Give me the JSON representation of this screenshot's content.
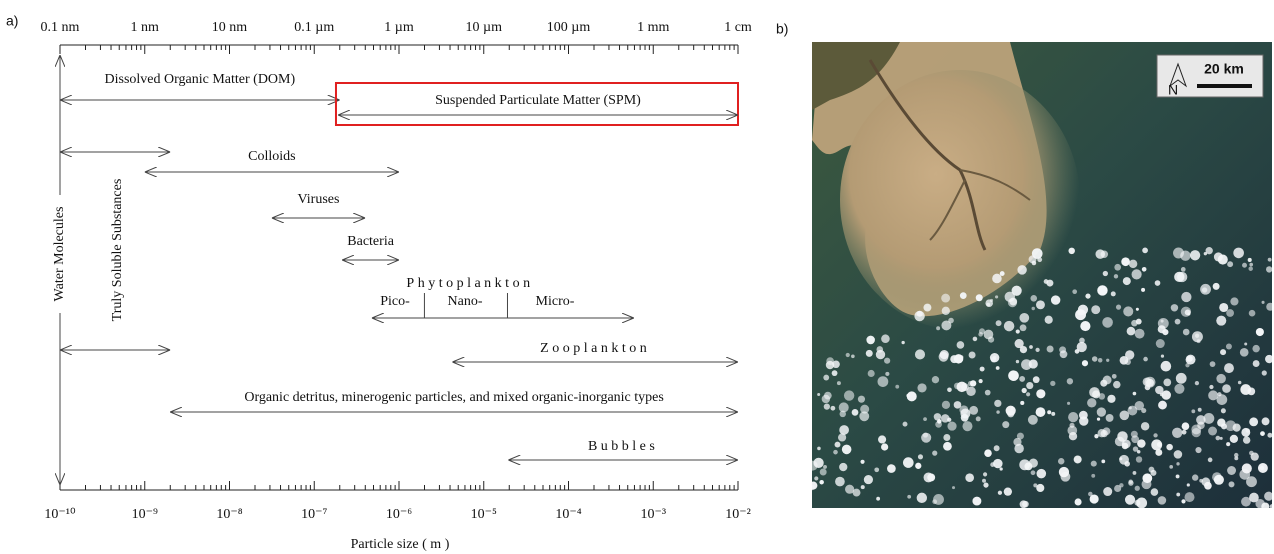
{
  "panel_a": {
    "label": "a)",
    "top_axis": {
      "ticks": [
        {
          "value": -10,
          "label": "0.1 nm"
        },
        {
          "value": -9,
          "label": "1 nm"
        },
        {
          "value": -8,
          "label": "10 nm"
        },
        {
          "value": -7,
          "label": "0.1 µm"
        },
        {
          "value": -6,
          "label": "1 µm"
        },
        {
          "value": -5,
          "label": "10 µm"
        },
        {
          "value": -4,
          "label": "100 µm"
        },
        {
          "value": -3,
          "label": "1 mm"
        },
        {
          "value": -2,
          "label": "1 cm"
        }
      ]
    },
    "bottom_axis": {
      "title": "Particle size ( m )",
      "ticks": [
        {
          "value": -10,
          "label": "10⁻¹⁰"
        },
        {
          "value": -9,
          "label": "10⁻⁹"
        },
        {
          "value": -8,
          "label": "10⁻⁸"
        },
        {
          "value": -7,
          "label": "10⁻⁷"
        },
        {
          "value": -6,
          "label": "10⁻⁶"
        },
        {
          "value": -5,
          "label": "10⁻⁵"
        },
        {
          "value": -4,
          "label": "10⁻⁴"
        },
        {
          "value": -3,
          "label": "10⁻³"
        },
        {
          "value": -2,
          "label": "10⁻²"
        }
      ]
    },
    "water_molecules": "Water Molecules",
    "ranges": [
      {
        "label": "Dissolved Organic Matter (DOM)",
        "range": [
          -10,
          -6.7
        ]
      },
      {
        "label": "Suspended Particulate Matter (SPM)",
        "range": [
          -6.72,
          -2
        ]
      },
      {
        "label": "Truly Soluble Substances",
        "range": [
          -10,
          -8.7
        ]
      },
      {
        "label": "Colloids",
        "range": [
          -9,
          -6
        ]
      },
      {
        "label": "Viruses",
        "range": [
          -7.5,
          -6.4
        ]
      },
      {
        "label": "Bacteria",
        "range": [
          -6.67,
          -6
        ]
      },
      {
        "label": "Phytoplankton",
        "range": [
          -6.32,
          -3.23
        ],
        "sublabels": [
          "Pico-",
          "Nano-",
          "Micro-"
        ],
        "boundaries": [
          -5.7,
          -4.72
        ]
      },
      {
        "label": "Zooplankton",
        "range": [
          -5.37,
          -2
        ]
      },
      {
        "label": "Organic detritus, minerogenic particles, and mixed organic-inorganic types",
        "range": [
          -8.7,
          -2
        ]
      },
      {
        "label": "Bubbles",
        "range": [
          -4.71,
          -2
        ]
      }
    ]
  },
  "panel_b": {
    "label": "b)",
    "scale_bar": "20 km",
    "north": "N"
  }
}
